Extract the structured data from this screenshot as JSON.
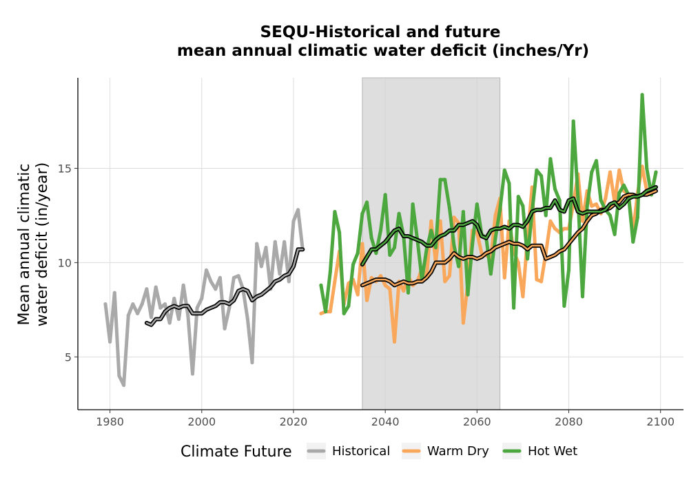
{
  "chart_data": {
    "type": "line",
    "title_line1": "SEQU-Historical and future",
    "title_line2": "mean annual climatic water deficit (inches/Yr)",
    "xlabel": "",
    "ylabel_line1": "Mean annual climatic",
    "ylabel_line2": "water deficit (in/year)",
    "xlim": [
      1973,
      2105
    ],
    "ylim": [
      2.2,
      19.8
    ],
    "xticks": [
      1980,
      2000,
      2020,
      2040,
      2060,
      2080,
      2100
    ],
    "yticks": [
      5,
      10,
      15
    ],
    "xtick_labels": [
      "1980",
      "2000",
      "2020",
      "2040",
      "2060",
      "2080",
      "2100"
    ],
    "ytick_labels": [
      "5",
      "10",
      "15"
    ],
    "grid": true,
    "shaded_period": [
      2035,
      2065
    ],
    "legend": {
      "title": "Climate Future",
      "position": "bottom",
      "entries": [
        {
          "label": "Historical",
          "color": "#a9a9a9"
        },
        {
          "label": "Warm Dry",
          "color": "#f9a75b"
        },
        {
          "label": "Hot Wet",
          "color": "#4ca73f"
        }
      ]
    },
    "series": [
      {
        "name": "Historical",
        "color": "#a9a9a9",
        "x": [
          1979,
          1980,
          1981,
          1982,
          1983,
          1984,
          1985,
          1986,
          1987,
          1988,
          1989,
          1990,
          1991,
          1992,
          1993,
          1994,
          1995,
          1996,
          1997,
          1998,
          1999,
          2000,
          2001,
          2002,
          2003,
          2004,
          2005,
          2006,
          2007,
          2008,
          2009,
          2010,
          2011,
          2012,
          2013,
          2014,
          2015,
          2016,
          2017,
          2018,
          2019,
          2020,
          2021,
          2022
        ],
        "values": [
          7.8,
          5.8,
          8.4,
          4.0,
          3.5,
          7.2,
          7.8,
          7.3,
          7.8,
          8.6,
          7.1,
          8.7,
          7.6,
          7.8,
          6.8,
          8.1,
          7.0,
          8.8,
          7.2,
          4.1,
          7.6,
          8.1,
          9.6,
          9.0,
          8.6,
          9.2,
          6.5,
          7.6,
          9.2,
          9.3,
          8.6,
          7.0,
          4.7,
          11.0,
          9.8,
          10.8,
          8.6,
          11.1,
          9.4,
          11.1,
          9.0,
          12.2,
          12.8,
          10.7
        ],
        "smooth_x": [
          1988,
          1989,
          1990,
          1991,
          1992,
          1993,
          1994,
          1995,
          1996,
          1997,
          1998,
          1999,
          2000,
          2001,
          2002,
          2003,
          2004,
          2005,
          2006,
          2007,
          2008,
          2009,
          2010,
          2011,
          2012,
          2013,
          2014,
          2015,
          2016,
          2017,
          2018,
          2019,
          2020,
          2021,
          2022
        ],
        "smooth_values": [
          6.8,
          6.7,
          7.0,
          7.0,
          7.4,
          7.6,
          7.7,
          7.6,
          7.7,
          7.7,
          7.3,
          7.3,
          7.3,
          7.5,
          7.6,
          7.7,
          7.9,
          7.9,
          7.8,
          8.0,
          8.5,
          8.6,
          8.5,
          8.0,
          8.2,
          8.3,
          8.5,
          8.7,
          9.0,
          9.1,
          9.3,
          9.4,
          9.8,
          10.7,
          10.7
        ]
      },
      {
        "name": "Warm Dry",
        "color": "#f9a75b",
        "x": [
          2026,
          2027,
          2028,
          2029,
          2030,
          2031,
          2032,
          2033,
          2034,
          2035,
          2036,
          2037,
          2038,
          2039,
          2040,
          2041,
          2042,
          2043,
          2044,
          2045,
          2046,
          2047,
          2048,
          2049,
          2050,
          2051,
          2052,
          2053,
          2054,
          2055,
          2056,
          2057,
          2058,
          2059,
          2060,
          2061,
          2062,
          2063,
          2064,
          2065,
          2066,
          2067,
          2068,
          2069,
          2070,
          2071,
          2072,
          2073,
          2074,
          2075,
          2076,
          2077,
          2078,
          2079,
          2080,
          2081,
          2082,
          2083,
          2084,
          2085,
          2086,
          2087,
          2088,
          2089,
          2090,
          2091,
          2092,
          2093,
          2094,
          2095,
          2096,
          2097,
          2098,
          2099
        ],
        "values": [
          7.3,
          7.4,
          7.4,
          9.0,
          10.6,
          7.8,
          8.9,
          9.1,
          8.3,
          11.0,
          8.0,
          9.2,
          9.0,
          9.3,
          8.8,
          8.6,
          5.8,
          9.0,
          8.5,
          9.3,
          8.8,
          9.0,
          9.7,
          9.2,
          12.2,
          10.0,
          12.2,
          9.0,
          9.3,
          12.4,
          12.1,
          6.8,
          8.9,
          11.7,
          11.6,
          10.5,
          10.4,
          10.2,
          12.5,
          13.4,
          9.2,
          12.2,
          10.6,
          10.0,
          8.2,
          11.3,
          14.0,
          9.1,
          9.0,
          10.5,
          12.2,
          11.8,
          11.6,
          11.8,
          11.8,
          13.1,
          14.7,
          12.2,
          13.8,
          13.0,
          13.1,
          12.6,
          13.4,
          14.8,
          13.2,
          14.9,
          13.8,
          13.6,
          11.6,
          13.7,
          15.1,
          13.8,
          13.6,
          14.8
        ],
        "smooth_x": [
          2035,
          2036,
          2037,
          2038,
          2039,
          2040,
          2041,
          2042,
          2043,
          2044,
          2045,
          2046,
          2047,
          2048,
          2049,
          2050,
          2051,
          2052,
          2053,
          2054,
          2055,
          2056,
          2057,
          2058,
          2059,
          2060,
          2061,
          2062,
          2063,
          2064,
          2065,
          2066,
          2067,
          2068,
          2069,
          2070,
          2071,
          2072,
          2073,
          2074,
          2075,
          2076,
          2077,
          2078,
          2079,
          2080,
          2081,
          2082,
          2083,
          2084,
          2085,
          2086,
          2087,
          2088,
          2089,
          2090,
          2091,
          2092,
          2093,
          2094,
          2095,
          2096,
          2097,
          2098,
          2099
        ],
        "smooth_values": [
          8.8,
          8.9,
          9.0,
          9.1,
          9.1,
          9.1,
          9.0,
          8.8,
          8.9,
          9.0,
          8.9,
          8.9,
          9.0,
          9.0,
          9.2,
          9.5,
          10.0,
          10.0,
          10.0,
          10.2,
          10.5,
          10.3,
          10.2,
          10.3,
          10.3,
          10.2,
          10.3,
          10.5,
          10.6,
          10.8,
          10.9,
          11.0,
          11.1,
          11.0,
          11.0,
          10.9,
          10.7,
          10.9,
          10.9,
          10.9,
          10.2,
          10.3,
          10.4,
          10.6,
          10.7,
          11.0,
          11.3,
          11.6,
          11.8,
          12.2,
          12.5,
          12.6,
          12.8,
          12.8,
          12.9,
          13.1,
          13.2,
          13.5,
          13.6,
          13.6,
          13.5,
          13.6,
          13.6,
          13.7,
          13.8
        ]
      },
      {
        "name": "Hot Wet",
        "color": "#4ca73f",
        "x": [
          2026,
          2027,
          2028,
          2029,
          2030,
          2031,
          2032,
          2033,
          2034,
          2035,
          2036,
          2037,
          2038,
          2039,
          2040,
          2041,
          2042,
          2043,
          2044,
          2045,
          2046,
          2047,
          2048,
          2049,
          2050,
          2051,
          2052,
          2053,
          2054,
          2055,
          2056,
          2057,
          2058,
          2059,
          2060,
          2061,
          2062,
          2063,
          2064,
          2065,
          2066,
          2067,
          2068,
          2069,
          2070,
          2071,
          2072,
          2073,
          2074,
          2075,
          2076,
          2077,
          2078,
          2079,
          2080,
          2081,
          2082,
          2083,
          2084,
          2085,
          2086,
          2087,
          2088,
          2089,
          2090,
          2091,
          2092,
          2093,
          2094,
          2095,
          2096,
          2097,
          2098,
          2099
        ],
        "values": [
          8.8,
          7.4,
          9.5,
          12.7,
          11.6,
          7.3,
          7.7,
          9.9,
          10.5,
          12.6,
          13.2,
          11.3,
          10.5,
          11.7,
          13.6,
          10.4,
          10.8,
          12.6,
          11.4,
          8.4,
          13.1,
          11.2,
          9.1,
          10.7,
          11.7,
          10.8,
          14.4,
          14.4,
          12.9,
          10.9,
          9.8,
          12.7,
          8.3,
          11.0,
          13.1,
          11.5,
          11.3,
          9.4,
          11.3,
          12.8,
          14.9,
          14.2,
          7.6,
          13.5,
          13.0,
          10.2,
          12.7,
          14.9,
          14.6,
          12.5,
          15.5,
          13.9,
          13.3,
          7.7,
          9.6,
          17.5,
          13.5,
          8.2,
          13.0,
          14.8,
          15.4,
          13.3,
          12.8,
          12.5,
          11.5,
          13.7,
          14.1,
          13.6,
          11.1,
          12.4,
          18.9,
          15.0,
          13.6,
          14.8
        ],
        "smooth_x": [
          2035,
          2036,
          2037,
          2038,
          2039,
          2040,
          2041,
          2042,
          2043,
          2044,
          2045,
          2046,
          2047,
          2048,
          2049,
          2050,
          2051,
          2052,
          2053,
          2054,
          2055,
          2056,
          2057,
          2058,
          2059,
          2060,
          2061,
          2062,
          2063,
          2064,
          2065,
          2066,
          2067,
          2068,
          2069,
          2070,
          2071,
          2072,
          2073,
          2074,
          2075,
          2076,
          2077,
          2078,
          2079,
          2080,
          2081,
          2082,
          2083,
          2084,
          2085,
          2086,
          2087,
          2088,
          2089,
          2090,
          2091,
          2092,
          2093,
          2094,
          2095,
          2096,
          2097,
          2098,
          2099
        ],
        "smooth_values": [
          9.9,
          10.3,
          10.7,
          10.7,
          10.9,
          11.1,
          11.4,
          11.7,
          11.8,
          11.4,
          11.4,
          11.3,
          11.2,
          11.1,
          10.9,
          10.9,
          11.2,
          11.4,
          11.5,
          11.7,
          11.7,
          12.0,
          12.0,
          12.1,
          12.2,
          12.0,
          11.4,
          11.3,
          11.7,
          11.8,
          11.8,
          11.9,
          11.8,
          12.0,
          12.0,
          11.9,
          12.2,
          12.7,
          12.8,
          12.8,
          12.9,
          12.9,
          13.3,
          12.8,
          12.7,
          13.3,
          13.4,
          12.7,
          12.6,
          12.7,
          12.7,
          12.7,
          12.7,
          12.8,
          13.1,
          13.2,
          12.9,
          13.1,
          13.4,
          13.5,
          13.5,
          13.6,
          13.8,
          13.9,
          14.0
        ]
      }
    ]
  }
}
